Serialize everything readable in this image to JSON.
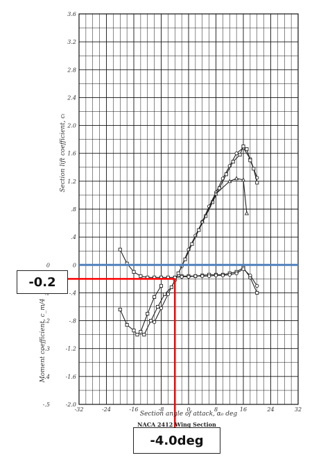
{
  "chart_data": {
    "type": "line",
    "title": "",
    "caption": "NACA 2412 Wing Section",
    "xlabel": "Section angle of attack, α₀ deg",
    "ylabel_lift": "Section lift coefficient, cₗ",
    "ylabel_moment": "Moment coefficient, c_m/4",
    "xlim": [
      -32,
      32
    ],
    "ylim": [
      -2.0,
      3.6
    ],
    "grid": true,
    "x_ticks": [
      "-32",
      "-24",
      "-16",
      "-8",
      "0",
      "8",
      "16",
      "24",
      "32"
    ],
    "x_tick_values": [
      -32,
      -24,
      -16,
      -8,
      0,
      8,
      16,
      24,
      32
    ],
    "y_ticks": [
      "3.6",
      "3.2",
      "2.8",
      "2.4",
      "2.0",
      "1.6",
      "1.2",
      ".8",
      ".4",
      "0",
      "-.4",
      "-.8",
      "-1.2",
      "-1.6",
      "-2.0"
    ],
    "y_tick_values": [
      3.6,
      3.2,
      2.8,
      2.4,
      2.0,
      1.6,
      1.2,
      0.8,
      0.4,
      0,
      -0.4,
      -0.8,
      -1.2,
      -1.6,
      -2.0
    ],
    "moment_ticks": [
      "0",
      "-.1",
      "-.2",
      "-.3",
      "-.4",
      "-.5"
    ],
    "moment_tick_values": [
      0,
      -0.1,
      -0.2,
      -0.3,
      -0.4,
      -0.5
    ],
    "series": [
      {
        "marker": "circle",
        "x": [
          -10,
          -8,
          -6,
          -4,
          -2,
          0,
          2,
          4,
          6,
          8,
          10,
          12,
          14,
          16,
          18,
          20
        ],
        "y": [
          -0.82,
          -0.62,
          -0.42,
          -0.22,
          -0.02,
          0.22,
          0.42,
          0.62,
          0.84,
          1.04,
          1.24,
          1.42,
          1.6,
          1.68,
          1.52,
          1.25
        ]
      },
      {
        "marker": "square",
        "x": [
          -13,
          -11,
          -9,
          -7,
          -5,
          -3,
          -1,
          1,
          3,
          5,
          7,
          9,
          11,
          13,
          15,
          16,
          17,
          18,
          19,
          20
        ],
        "y": [
          -1.0,
          -0.8,
          -0.6,
          -0.42,
          -0.32,
          -0.12,
          0.08,
          0.3,
          0.5,
          0.7,
          0.9,
          1.1,
          1.3,
          1.48,
          1.58,
          1.7,
          1.66,
          1.5,
          1.38,
          1.18
        ]
      },
      {
        "marker": "triangle",
        "x": [
          4,
          8,
          12,
          14,
          16,
          17
        ],
        "y": [
          0.62,
          1.02,
          1.2,
          1.24,
          1.22,
          0.74
        ]
      },
      {
        "marker": "square",
        "x": [
          -20,
          -18,
          -16,
          -14,
          -12,
          -10,
          -8,
          -6,
          -4,
          -2,
          0,
          2,
          4,
          6,
          8,
          10,
          12,
          14,
          16,
          18,
          20
        ],
        "y": [
          0.22,
          0.02,
          -0.1,
          -0.16,
          -0.18,
          -0.18,
          -0.18,
          -0.18,
          -0.18,
          -0.16,
          -0.16,
          -0.16,
          -0.15,
          -0.14,
          -0.14,
          -0.14,
          -0.12,
          -0.1,
          -0.04,
          -0.18,
          -0.4
        ]
      },
      {
        "marker": "circle",
        "x": [
          -4,
          -2,
          0,
          2,
          4,
          6,
          8,
          10,
          12,
          14,
          16,
          18,
          20
        ],
        "y": [
          -0.18,
          -0.17,
          -0.17,
          -0.16,
          -0.16,
          -0.16,
          -0.15,
          -0.15,
          -0.14,
          -0.12,
          -0.06,
          -0.15,
          -0.3
        ]
      },
      {
        "marker": "square",
        "x": [
          -20,
          -18,
          -16,
          -15,
          -14,
          -12,
          -10,
          -8
        ],
        "y": [
          -0.64,
          -0.86,
          -0.94,
          -1.0,
          -0.96,
          -0.7,
          -0.46,
          -0.3
        ]
      }
    ],
    "overlay": {
      "hline_y": 0,
      "hline_color": "#4f81bd",
      "marker_color": "#ff0000",
      "marker_y": -0.2,
      "marker_x": -4.0,
      "label_y": "-0.2",
      "label_x": "-4.0deg"
    }
  }
}
